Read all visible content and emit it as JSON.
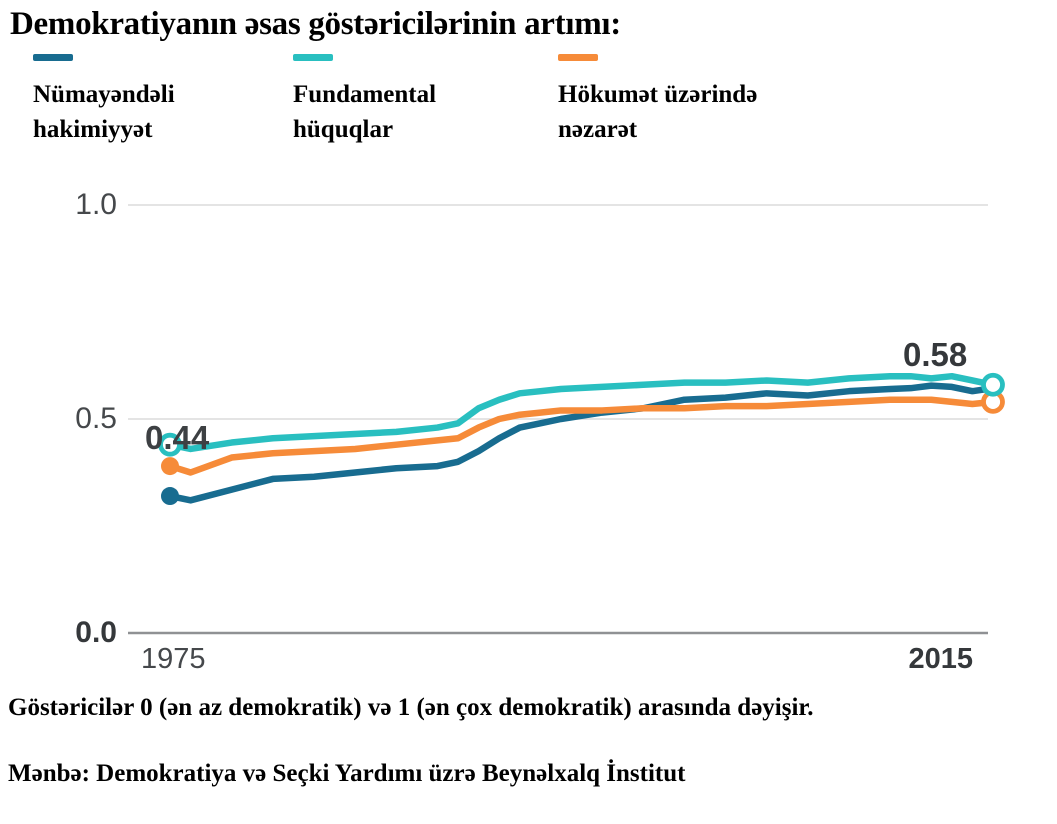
{
  "title": "Demokratiyanın əsas göstəricilərinin artımı:",
  "legend": {
    "items": [
      {
        "label_line1": "Nümayəndəli",
        "label_line2": "hakimiyyət",
        "color": "#186c90"
      },
      {
        "label_line1": "Fundamental",
        "label_line2": "hüquqlar",
        "color": "#29bfc0"
      },
      {
        "label_line1": "Hökumət üzərində",
        "label_line2": "nəzarət",
        "color": "#f68b39"
      }
    ]
  },
  "axis": {
    "y_ticks": [
      "1.0",
      "0.5",
      "0.0"
    ],
    "x_left": "1975",
    "x_right": "2015"
  },
  "chart_data": {
    "type": "line",
    "title": "Demokratiyanın əsas göstəricilərinin artımı:",
    "xlabel": "",
    "ylabel": "",
    "xlim": [
      1975,
      2015
    ],
    "ylim": [
      0,
      1
    ],
    "y_gridlines": [
      0.5,
      1.0
    ],
    "x_ticks": [
      1975,
      2015
    ],
    "grid": "horizontal",
    "legend_position": "top",
    "x": [
      1975,
      1976,
      1978,
      1980,
      1982,
      1984,
      1986,
      1988,
      1989,
      1990,
      1991,
      1992,
      1993,
      1994,
      1996,
      1998,
      2000,
      2002,
      2004,
      2006,
      2008,
      2010,
      2011,
      2012,
      2013,
      2014,
      2015
    ],
    "series": [
      {
        "name": "Nümayəndəli hakimiyyət",
        "color": "#186c90",
        "values": [
          0.32,
          0.31,
          0.335,
          0.36,
          0.365,
          0.375,
          0.385,
          0.39,
          0.4,
          0.425,
          0.455,
          0.48,
          0.49,
          0.5,
          0.515,
          0.525,
          0.545,
          0.55,
          0.56,
          0.555,
          0.565,
          0.57,
          0.572,
          0.578,
          0.575,
          0.565,
          0.572
        ]
      },
      {
        "name": "Fundamental hüquqlar",
        "color": "#29bfc0",
        "values": [
          0.44,
          0.43,
          0.445,
          0.455,
          0.46,
          0.465,
          0.47,
          0.48,
          0.49,
          0.525,
          0.545,
          0.56,
          0.565,
          0.57,
          0.575,
          0.58,
          0.585,
          0.585,
          0.59,
          0.585,
          0.595,
          0.6,
          0.6,
          0.595,
          0.6,
          0.59,
          0.58
        ]
      },
      {
        "name": "Hökumət üzərində nəzarət",
        "color": "#f68b39",
        "values": [
          0.39,
          0.375,
          0.41,
          0.42,
          0.425,
          0.43,
          0.44,
          0.45,
          0.455,
          0.48,
          0.5,
          0.51,
          0.515,
          0.52,
          0.52,
          0.525,
          0.525,
          0.53,
          0.53,
          0.535,
          0.54,
          0.545,
          0.545,
          0.545,
          0.54,
          0.535,
          0.54
        ]
      }
    ],
    "markers": [
      {
        "series": 0,
        "at": "start",
        "style": "filled"
      },
      {
        "series": 2,
        "at": "start",
        "style": "filled"
      },
      {
        "series": 1,
        "at": "start",
        "style": "open"
      },
      {
        "series": 2,
        "at": "end",
        "style": "open"
      },
      {
        "series": 1,
        "at": "end",
        "style": "open"
      }
    ],
    "annotations": [
      {
        "text": "0.44",
        "year": 1975,
        "value": 0.44,
        "series": "Fundamental hüquqlar"
      },
      {
        "text": "0.58",
        "year": 2015,
        "value": 0.58,
        "series": "Fundamental hüquqlar"
      }
    ]
  },
  "footnote": "Göstəricilər 0 (ən az demokratik) və 1 (ən çox demokratik) arasında dəyişir.",
  "source": "Mənbə: Demokratiya və Seçki Yardımı üzrə Beynəlxalq İnstitut"
}
